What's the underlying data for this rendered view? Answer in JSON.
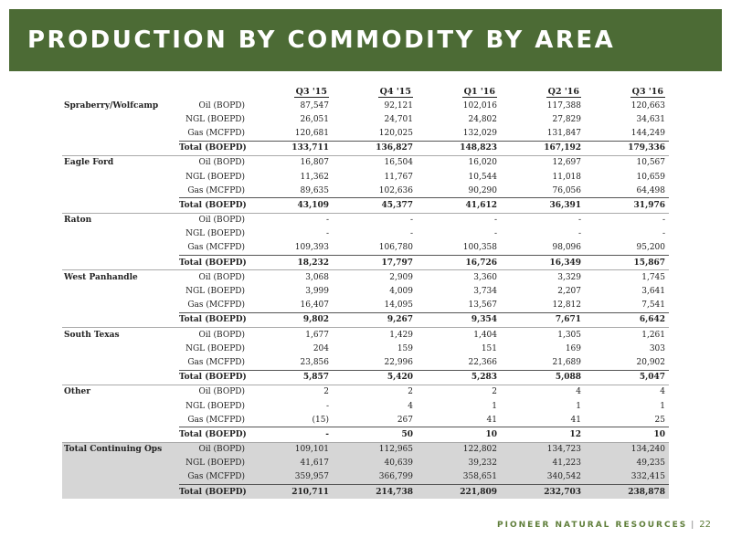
{
  "title": "PRODUCTION BY COMMODITY BY AREA",
  "columns": [
    "Q3 '15",
    "Q4 '15",
    "Q1 '16",
    "Q2 '16",
    "Q3 '16"
  ],
  "groups": [
    {
      "area": "Spraberry/Wolfcamp",
      "rows": [
        {
          "metric": "Oil (BOPD)",
          "values": [
            "87,547",
            "92,121",
            "102,016",
            "117,388",
            "120,663"
          ]
        },
        {
          "metric": "NGL (BOEPD)",
          "values": [
            "26,051",
            "24,701",
            "24,802",
            "27,829",
            "34,631"
          ]
        },
        {
          "metric": "Gas (MCFPD)",
          "values": [
            "120,681",
            "120,025",
            "132,029",
            "131,847",
            "144,249"
          ]
        },
        {
          "metric": "Total (BOEPD)",
          "values": [
            "133,711",
            "136,827",
            "148,823",
            "167,192",
            "179,336"
          ]
        }
      ]
    },
    {
      "area": "Eagle Ford",
      "rows": [
        {
          "metric": "Oil (BOPD)",
          "values": [
            "16,807",
            "16,504",
            "16,020",
            "12,697",
            "10,567"
          ]
        },
        {
          "metric": "NGL (BOEPD)",
          "values": [
            "11,362",
            "11,767",
            "10,544",
            "11,018",
            "10,659"
          ]
        },
        {
          "metric": "Gas (MCFPD)",
          "values": [
            "89,635",
            "102,636",
            "90,290",
            "76,056",
            "64,498"
          ]
        },
        {
          "metric": "Total (BOEPD)",
          "values": [
            "43,109",
            "45,377",
            "41,612",
            "36,391",
            "31,976"
          ]
        }
      ]
    },
    {
      "area": "Raton",
      "rows": [
        {
          "metric": "Oil (BOPD)",
          "values": [
            "-",
            "-",
            "-",
            "-",
            "-"
          ]
        },
        {
          "metric": "NGL (BOEPD)",
          "values": [
            "-",
            "-",
            "-",
            "-",
            "-"
          ]
        },
        {
          "metric": "Gas (MCFPD)",
          "values": [
            "109,393",
            "106,780",
            "100,358",
            "98,096",
            "95,200"
          ]
        },
        {
          "metric": "Total (BOEPD)",
          "values": [
            "18,232",
            "17,797",
            "16,726",
            "16,349",
            "15,867"
          ]
        }
      ]
    },
    {
      "area": "West Panhandle",
      "rows": [
        {
          "metric": "Oil (BOPD)",
          "values": [
            "3,068",
            "2,909",
            "3,360",
            "3,329",
            "1,745"
          ]
        },
        {
          "metric": "NGL (BOEPD)",
          "values": [
            "3,999",
            "4,009",
            "3,734",
            "2,207",
            "3,641"
          ]
        },
        {
          "metric": "Gas (MCFPD)",
          "values": [
            "16,407",
            "14,095",
            "13,567",
            "12,812",
            "7,541"
          ]
        },
        {
          "metric": "Total (BOEPD)",
          "values": [
            "9,802",
            "9,267",
            "9,354",
            "7,671",
            "6,642"
          ]
        }
      ]
    },
    {
      "area": "South Texas",
      "rows": [
        {
          "metric": "Oil (BOPD)",
          "values": [
            "1,677",
            "1,429",
            "1,404",
            "1,305",
            "1,261"
          ]
        },
        {
          "metric": "NGL (BOEPD)",
          "values": [
            "204",
            "159",
            "151",
            "169",
            "303"
          ]
        },
        {
          "metric": "Gas (MCFPD)",
          "values": [
            "23,856",
            "22,996",
            "22,366",
            "21,689",
            "20,902"
          ]
        },
        {
          "metric": "Total (BOEPD)",
          "values": [
            "5,857",
            "5,420",
            "5,283",
            "5,088",
            "5,047"
          ]
        }
      ]
    },
    {
      "area": "Other",
      "rows": [
        {
          "metric": "Oil (BOPD)",
          "values": [
            "2",
            "2",
            "2",
            "4",
            "4"
          ]
        },
        {
          "metric": "NGL (BOEPD)",
          "values": [
            "-",
            "4",
            "1",
            "1",
            "1"
          ]
        },
        {
          "metric": "Gas (MCFPD)",
          "values": [
            "(15)",
            "267",
            "41",
            "41",
            "25"
          ]
        },
        {
          "metric": "Total (BOEPD)",
          "values": [
            "-",
            "50",
            "10",
            "12",
            "10"
          ]
        }
      ]
    },
    {
      "area": "Total Continuing Ops",
      "rows": [
        {
          "metric": "Oil (BOPD)",
          "values": [
            "109,101",
            "112,965",
            "122,802",
            "134,723",
            "134,240"
          ]
        },
        {
          "metric": "NGL (BOEPD)",
          "values": [
            "41,617",
            "40,639",
            "39,232",
            "41,223",
            "49,235"
          ]
        },
        {
          "metric": "Gas (MCFPD)",
          "values": [
            "359,957",
            "366,799",
            "358,651",
            "340,542",
            "332,415"
          ]
        },
        {
          "metric": "Total (BOEPD)",
          "values": [
            "210,711",
            "214,738",
            "221,809",
            "232,703",
            "238,878"
          ]
        }
      ]
    }
  ],
  "footer": {
    "company": "PIONEER NATURAL RESOURCES",
    "separator": "|",
    "page": "22"
  },
  "colors": {
    "title_bar": "#4c6b35",
    "footer_text": "#5f7e3a",
    "grand_total_bg": "#d6d6d6"
  }
}
